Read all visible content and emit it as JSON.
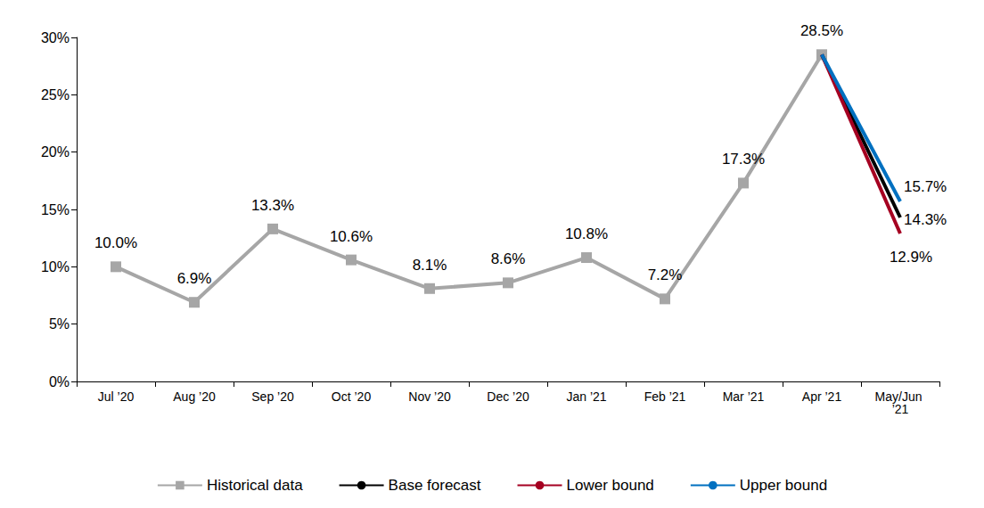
{
  "chart_data": {
    "type": "line",
    "categories": [
      "Jul ’20",
      "Aug ’20",
      "Sep ’20",
      "Oct ’20",
      "Nov ’20",
      "Dec ’20",
      "Jan ’21",
      "Feb ’21",
      "Mar ’21",
      "Apr ’21",
      "May/Jun ’21"
    ],
    "series": [
      {
        "name": "Historical data",
        "color": "#A6A6A6",
        "marker": "square",
        "values": [
          10.0,
          6.9,
          13.3,
          10.6,
          8.1,
          8.6,
          10.8,
          7.2,
          17.3,
          28.5,
          null
        ],
        "value_labels": [
          "10.0%",
          "6.9%",
          "13.3%",
          "10.6%",
          "8.1%",
          "8.6%",
          "10.8%",
          "7.2%",
          "17.3%",
          "28.5%",
          null
        ]
      },
      {
        "name": "Base forecast",
        "color": "#000000",
        "marker": "none",
        "values": [
          null,
          null,
          null,
          null,
          null,
          null,
          null,
          null,
          null,
          28.5,
          14.3
        ],
        "value_labels": [
          null,
          null,
          null,
          null,
          null,
          null,
          null,
          null,
          null,
          "28.5%",
          "14.3%"
        ]
      },
      {
        "name": "Lower bound",
        "color": "#A50021",
        "marker": "none",
        "values": [
          null,
          null,
          null,
          null,
          null,
          null,
          null,
          null,
          null,
          28.5,
          12.9
        ],
        "value_labels": [
          null,
          null,
          null,
          null,
          null,
          null,
          null,
          null,
          null,
          "28.5%",
          "12.9%"
        ]
      },
      {
        "name": "Upper bound",
        "color": "#0070C0",
        "marker": "none",
        "values": [
          null,
          null,
          null,
          null,
          null,
          null,
          null,
          null,
          null,
          28.5,
          15.7
        ],
        "value_labels": [
          null,
          null,
          null,
          null,
          null,
          null,
          null,
          null,
          null,
          "28.5%",
          "15.7%"
        ]
      }
    ],
    "ylim": [
      0,
      30
    ],
    "yticks": [
      {
        "value": 0,
        "label": "0%"
      },
      {
        "value": 5,
        "label": "5%"
      },
      {
        "value": 10,
        "label": "10%"
      },
      {
        "value": 15,
        "label": "15%"
      },
      {
        "value": 20,
        "label": "20%"
      },
      {
        "value": 25,
        "label": "25%"
      },
      {
        "value": 30,
        "label": "30%"
      }
    ],
    "grid": false,
    "legend": "bottom",
    "data_labels": true
  }
}
